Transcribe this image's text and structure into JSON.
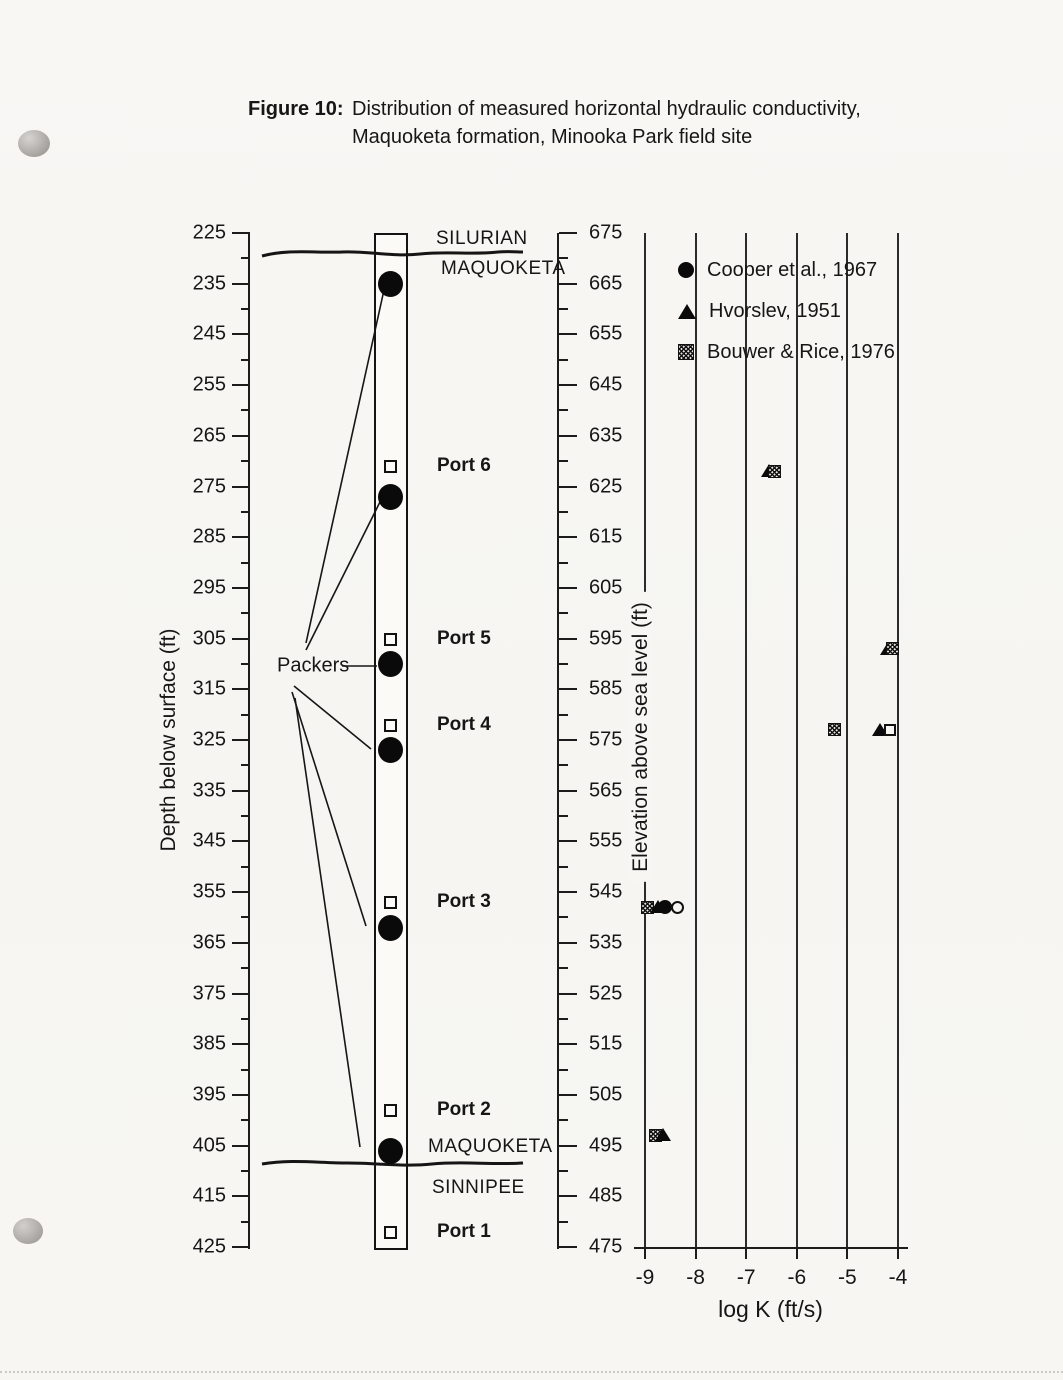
{
  "figure": {
    "label": "Figure 10:",
    "title_line1": "Distribution of measured horizontal hydraulic conductivity,",
    "title_line2": "Maquoketa formation, Minooka Park field site"
  },
  "depth_axis": {
    "label": "Depth below surface (ft)",
    "min": 225,
    "max": 425,
    "major_step": 10,
    "minor_step": 5
  },
  "elevation_axis": {
    "label": "Elevation above sea level (ft)",
    "min": 475,
    "max": 675,
    "major_step": 10,
    "minor_step": 5
  },
  "k_axis": {
    "label": "log K (ft/s)",
    "ticks": [
      -9,
      -8,
      -7,
      -6,
      -5,
      -4
    ]
  },
  "borehole": {
    "upper_contact": {
      "above": "SILURIAN",
      "below": "MAQUOKETA"
    },
    "lower_contact": {
      "above": "MAQUOKETA",
      "below": "SINNIPEE"
    },
    "packers_label": "Packers",
    "packer_depths_ft": [
      235,
      277,
      310,
      327,
      362,
      406
    ],
    "ports": [
      {
        "label": "Port 6",
        "depth_ft": 271
      },
      {
        "label": "Port 5",
        "depth_ft": 305
      },
      {
        "label": "Port 4",
        "depth_ft": 322
      },
      {
        "label": "Port 3",
        "depth_ft": 357
      },
      {
        "label": "Port 2",
        "depth_ft": 398
      },
      {
        "label": "Port 1",
        "depth_ft": 422
      }
    ]
  },
  "legend": {
    "items": [
      {
        "series": "cooper",
        "marker": "filled-circle",
        "label": "Cooper et al., 1967"
      },
      {
        "series": "hvorslev",
        "marker": "filled-triangle",
        "label": "Hvorslev, 1951"
      },
      {
        "series": "bouwer",
        "marker": "hatched-square",
        "label": "Bouwer & Rice, 1976"
      }
    ]
  },
  "chart_data": {
    "type": "scatter",
    "title": "Distribution of measured horizontal hydraulic conductivity, Maquoketa formation, Minooka Park field site",
    "xlabel": "log K (ft/s)",
    "xlim": [
      -9,
      -4
    ],
    "ylabel": "Elevation above sea level (ft)",
    "ylim": [
      475,
      675
    ],
    "ylabel_secondary": "Depth below surface (ft)",
    "ylim_secondary": [
      425,
      225
    ],
    "grid": "vertical",
    "legend_position": "top-right",
    "points": [
      {
        "series": "hvorslev",
        "log_k": -6.55,
        "elevation_ft": 628
      },
      {
        "series": "bouwer",
        "log_k": -6.45,
        "elevation_ft": 628
      },
      {
        "series": "hvorslev",
        "log_k": -4.2,
        "elevation_ft": 593
      },
      {
        "series": "bouwer",
        "log_k": -4.1,
        "elevation_ft": 593
      },
      {
        "series": "bouwer",
        "log_k": -5.25,
        "elevation_ft": 577
      },
      {
        "series": "hvorslev",
        "log_k": -4.35,
        "elevation_ft": 577
      },
      {
        "series": "open-square",
        "log_k": -4.15,
        "elevation_ft": 577
      },
      {
        "series": "bouwer",
        "log_k": -8.95,
        "elevation_ft": 542
      },
      {
        "series": "hvorslev",
        "log_k": -8.75,
        "elevation_ft": 542
      },
      {
        "series": "cooper",
        "log_k": -8.6,
        "elevation_ft": 542
      },
      {
        "series": "open-circle",
        "log_k": -8.35,
        "elevation_ft": 542
      },
      {
        "series": "bouwer",
        "log_k": -8.8,
        "elevation_ft": 497
      },
      {
        "series": "hvorslev",
        "log_k": -8.65,
        "elevation_ft": 497
      }
    ]
  }
}
